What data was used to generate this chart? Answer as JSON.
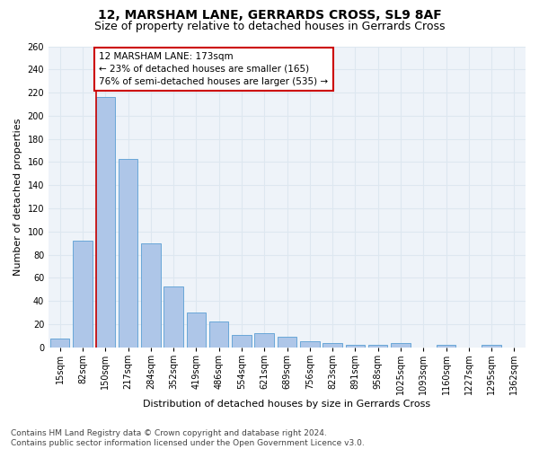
{
  "title": "12, MARSHAM LANE, GERRARDS CROSS, SL9 8AF",
  "subtitle": "Size of property relative to detached houses in Gerrards Cross",
  "xlabel": "Distribution of detached houses by size in Gerrards Cross",
  "ylabel": "Number of detached properties",
  "bar_values": [
    8,
    92,
    216,
    163,
    90,
    53,
    30,
    22,
    11,
    12,
    9,
    5,
    4,
    2,
    2,
    4,
    0,
    2,
    0,
    2
  ],
  "all_labels": [
    "15sqm",
    "82sqm",
    "150sqm",
    "217sqm",
    "284sqm",
    "352sqm",
    "419sqm",
    "486sqm",
    "554sqm",
    "621sqm",
    "689sqm",
    "756sqm",
    "823sqm",
    "891sqm",
    "958sqm",
    "1025sqm",
    "1093sqm",
    "1160sqm",
    "1227sqm",
    "1295sqm",
    "1362sqm"
  ],
  "bar_color": "#aec6e8",
  "bar_edge_color": "#5a9fd4",
  "grid_color": "#dde7f0",
  "background_color": "#eef3f9",
  "annotation_text": "12 MARSHAM LANE: 173sqm\n← 23% of detached houses are smaller (165)\n76% of semi-detached houses are larger (535) →",
  "annotation_box_color": "#ffffff",
  "annotation_box_edge": "#cc0000",
  "red_line_index": 2,
  "ylim": [
    0,
    260
  ],
  "yticks": [
    0,
    20,
    40,
    60,
    80,
    100,
    120,
    140,
    160,
    180,
    200,
    220,
    240,
    260
  ],
  "footnote": "Contains HM Land Registry data © Crown copyright and database right 2024.\nContains public sector information licensed under the Open Government Licence v3.0.",
  "title_fontsize": 10,
  "subtitle_fontsize": 9,
  "xlabel_fontsize": 8,
  "ylabel_fontsize": 8,
  "tick_fontsize": 7,
  "annotation_fontsize": 7.5,
  "footnote_fontsize": 6.5
}
